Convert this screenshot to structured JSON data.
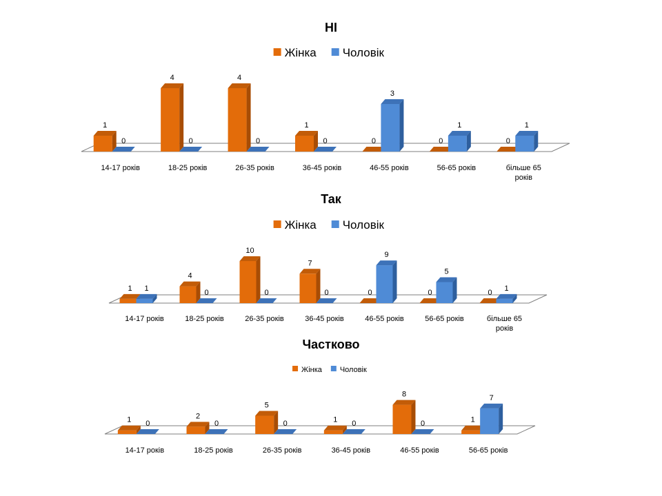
{
  "colors": {
    "female": "#E36C0A",
    "female_side": "#A84D05",
    "female_top": "#C25C08",
    "male": "#4F8BD6",
    "male_side": "#2E5F9E",
    "male_top": "#3D72B8",
    "floor": "#7F7F7F"
  },
  "chart_data": [
    {
      "type": "bar",
      "title": "НІ",
      "categories": [
        "14-17 років",
        "18-25 років",
        "26-35 років",
        "36-45 років",
        "46-55 років",
        "56-65 років",
        "більше 65 років"
      ],
      "series": [
        {
          "name": "Жінка",
          "values": [
            1,
            4,
            4,
            1,
            0,
            0,
            0
          ]
        },
        {
          "name": "Чоловік",
          "values": [
            0,
            0,
            0,
            0,
            3,
            1,
            1
          ]
        }
      ],
      "legend": "top-center",
      "grid": false,
      "three_d": true
    },
    {
      "type": "bar",
      "title": "Так",
      "categories": [
        "14-17 років",
        "18-25 років",
        "26-35 років",
        "36-45 років",
        "46-55 років",
        "56-65 років",
        "більше 65 років"
      ],
      "series": [
        {
          "name": "Жінка",
          "values": [
            1,
            4,
            10,
            7,
            0,
            0,
            0
          ]
        },
        {
          "name": "Чоловік",
          "values": [
            1,
            0,
            0,
            0,
            9,
            5,
            1
          ]
        }
      ],
      "legend": "top-center",
      "grid": false,
      "three_d": true
    },
    {
      "type": "bar",
      "title": "Частково",
      "categories": [
        "14-17 років",
        "18-25 років",
        "26-35 років",
        "36-45 років",
        "46-55 років",
        "56-65 років"
      ],
      "series": [
        {
          "name": "Жінка",
          "values": [
            1,
            2,
            5,
            1,
            8,
            1
          ]
        },
        {
          "name": "Чоловік",
          "values": [
            0,
            0,
            0,
            0,
            0,
            7
          ]
        }
      ],
      "legend": "top-center",
      "grid": false,
      "three_d": true
    }
  ]
}
